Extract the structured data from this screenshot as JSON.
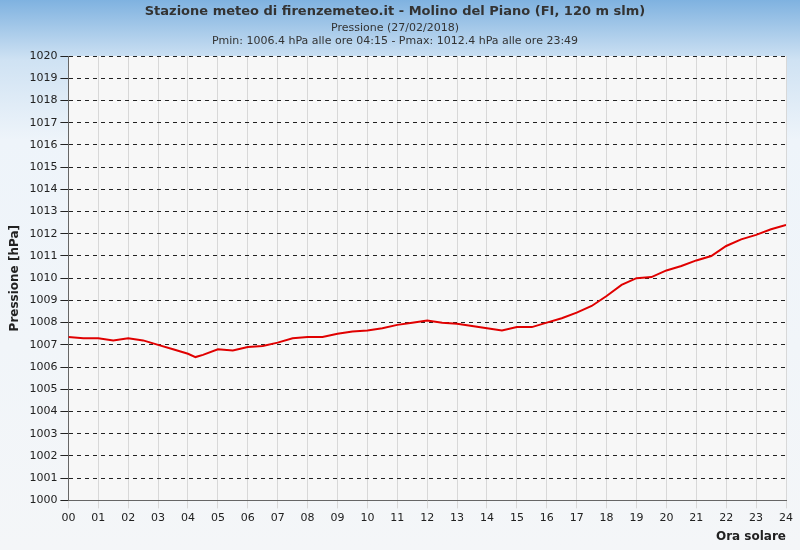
{
  "chart_data": {
    "type": "line",
    "title": "Stazione meteo di firenzemeteo.it - Molino del Piano (FI, 120 m slm)",
    "subtitle": [
      "Pressione (27/02/2018)",
      "Pmin: 1006.4 hPa alle ore 04:15 - Pmax: 1012.4 hPa alle ore 23:49"
    ],
    "x_label": "Ora solare",
    "y_label": "Pressione [hPa]",
    "x": [
      0,
      0.5,
      1,
      1.5,
      2,
      2.5,
      3,
      3.5,
      4,
      4.25,
      4.5,
      5,
      5.5,
      6,
      6.5,
      7,
      7.5,
      8,
      8.5,
      9,
      9.5,
      10,
      10.5,
      11,
      11.5,
      12,
      12.5,
      13,
      13.5,
      14,
      14.5,
      15,
      15.5,
      16,
      16.5,
      17,
      17.5,
      18,
      18.5,
      19,
      19.5,
      20,
      20.5,
      21,
      21.5,
      22,
      22.5,
      23,
      23.5,
      24
    ],
    "series": [
      {
        "name": "Pressione",
        "color": "#e00000",
        "values": [
          1007.35,
          1007.3,
          1007.3,
          1007.2,
          1007.3,
          1007.2,
          1007.0,
          1006.8,
          1006.6,
          1006.45,
          1006.55,
          1006.8,
          1006.75,
          1006.9,
          1006.95,
          1007.1,
          1007.3,
          1007.35,
          1007.35,
          1007.5,
          1007.6,
          1007.65,
          1007.75,
          1007.9,
          1008.0,
          1008.1,
          1008.0,
          1007.95,
          1007.85,
          1007.75,
          1007.65,
          1007.8,
          1007.8,
          1008.0,
          1008.2,
          1008.45,
          1008.75,
          1009.2,
          1009.7,
          1010.0,
          1010.05,
          1010.35,
          1010.55,
          1010.8,
          1011.0,
          1011.45,
          1011.75,
          1011.95,
          1012.2,
          1012.4
        ]
      }
    ],
    "xlim": [
      0,
      24
    ],
    "xticks": [
      {
        "value": 0,
        "label": "00"
      },
      {
        "value": 1,
        "label": "01"
      },
      {
        "value": 2,
        "label": "02"
      },
      {
        "value": 3,
        "label": "03"
      },
      {
        "value": 4,
        "label": "04"
      },
      {
        "value": 5,
        "label": "05"
      },
      {
        "value": 6,
        "label": "06"
      },
      {
        "value": 7,
        "label": "07"
      },
      {
        "value": 8,
        "label": "08"
      },
      {
        "value": 9,
        "label": "09"
      },
      {
        "value": 10,
        "label": "10"
      },
      {
        "value": 11,
        "label": "11"
      },
      {
        "value": 12,
        "label": "12"
      },
      {
        "value": 13,
        "label": "13"
      },
      {
        "value": 14,
        "label": "14"
      },
      {
        "value": 15,
        "label": "15"
      },
      {
        "value": 16,
        "label": "16"
      },
      {
        "value": 17,
        "label": "17"
      },
      {
        "value": 18,
        "label": "18"
      },
      {
        "value": 19,
        "label": "19"
      },
      {
        "value": 20,
        "label": "20"
      },
      {
        "value": 21,
        "label": "21"
      },
      {
        "value": 22,
        "label": "22"
      },
      {
        "value": 23,
        "label": "23"
      },
      {
        "value": 24,
        "label": "24"
      }
    ],
    "ylim": [
      1000,
      1020
    ],
    "yticks": [
      1000,
      1001,
      1002,
      1003,
      1004,
      1005,
      1006,
      1007,
      1008,
      1009,
      1010,
      1011,
      1012,
      1013,
      1014,
      1015,
      1016,
      1017,
      1018,
      1019,
      1020
    ],
    "grid": true
  }
}
